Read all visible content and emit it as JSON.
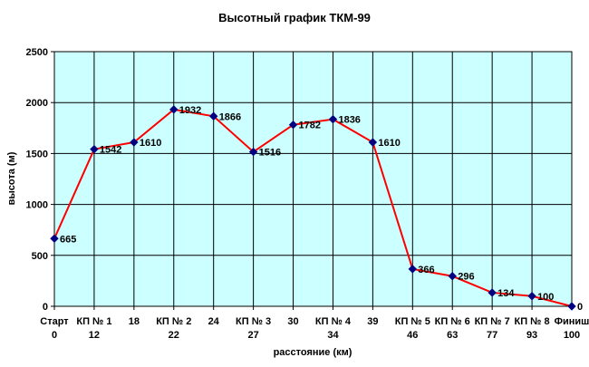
{
  "chart_data": {
    "type": "line",
    "title": "Высотный график ТКМ-99",
    "xlabel": "расстояние (км)",
    "ylabel": "высота (м)",
    "ylim": [
      0,
      2500
    ],
    "yticks": [
      0,
      500,
      1000,
      1500,
      2000,
      2500
    ],
    "grid": true,
    "legend": "none",
    "colors": {
      "plot_background": "#ccffff",
      "line": "#ff0000",
      "marker": "#000080",
      "grid": "#000000"
    },
    "categories": [
      {
        "name": "Старт",
        "km": "0"
      },
      {
        "name": "КП № 1",
        "km": "12"
      },
      {
        "name": "",
        "km": "18"
      },
      {
        "name": "КП № 2",
        "km": "22"
      },
      {
        "name": "",
        "km": "24"
      },
      {
        "name": "КП № 3",
        "km": "27"
      },
      {
        "name": "",
        "km": "30"
      },
      {
        "name": "КП № 4",
        "km": "34"
      },
      {
        "name": "",
        "km": "39"
      },
      {
        "name": "КП № 5",
        "km": "46"
      },
      {
        "name": "КП № 6",
        "km": "63"
      },
      {
        "name": "КП № 7",
        "km": "77"
      },
      {
        "name": "КП № 8",
        "km": "93"
      },
      {
        "name": "Финиш",
        "km": "100"
      }
    ],
    "values": [
      665,
      1542,
      1610,
      1932,
      1866,
      1516,
      1782,
      1836,
      1610,
      366,
      296,
      134,
      100,
      0
    ]
  }
}
